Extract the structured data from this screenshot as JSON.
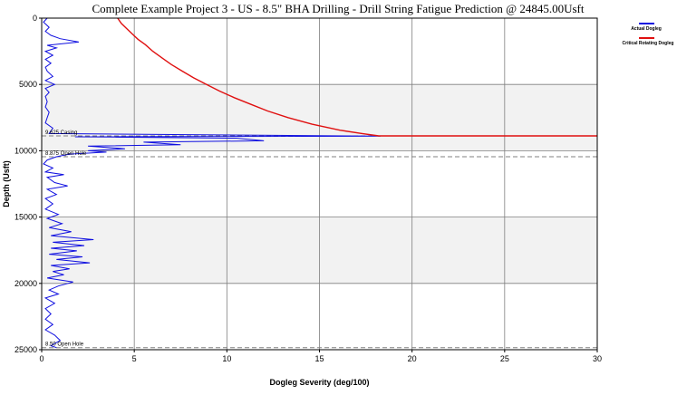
{
  "chart_data": {
    "type": "line",
    "title": "Complete Example Project 3 - US - 8.5\" BHA Drilling - Drill String Fatigue Prediction @ 24845.00Usft",
    "xlabel": "Dogleg Severity (deg/100)",
    "ylabel": "Depth (Usft)",
    "xlim": [
      0,
      30
    ],
    "ylim": [
      0,
      25000
    ],
    "y_inverted": true,
    "x_ticks": [
      0,
      5,
      10,
      15,
      20,
      25,
      30
    ],
    "y_ticks": [
      0,
      5000,
      10000,
      15000,
      20000,
      25000
    ],
    "grid": true,
    "legend_position": "top-right",
    "series": [
      {
        "name": "Actual Dogleg",
        "color": "#1010e0",
        "points": [
          [
            0.3,
            0
          ],
          [
            0.1,
            300
          ],
          [
            0.4,
            700
          ],
          [
            0.2,
            1000
          ],
          [
            0.5,
            1300
          ],
          [
            1.0,
            1550
          ],
          [
            2.0,
            1800
          ],
          [
            1.0,
            1950
          ],
          [
            0.3,
            2050
          ],
          [
            0.8,
            2250
          ],
          [
            0.2,
            2500
          ],
          [
            0.6,
            2800
          ],
          [
            0.2,
            3100
          ],
          [
            0.5,
            3400
          ],
          [
            0.2,
            3700
          ],
          [
            0.3,
            4000
          ],
          [
            0.6,
            4400
          ],
          [
            0.2,
            4700
          ],
          [
            0.7,
            5000
          ],
          [
            0.2,
            5300
          ],
          [
            0.4,
            5600
          ],
          [
            0.2,
            5900
          ],
          [
            0.3,
            6300
          ],
          [
            0.2,
            6700
          ],
          [
            0.4,
            7100
          ],
          [
            0.3,
            7500
          ],
          [
            0.2,
            7900
          ],
          [
            0.6,
            8300
          ],
          [
            0.4,
            8700
          ],
          [
            18.3,
            8900
          ],
          [
            1.8,
            8950
          ],
          [
            10.5,
            9050
          ],
          [
            12.0,
            9250
          ],
          [
            5.5,
            9350
          ],
          [
            7.5,
            9550
          ],
          [
            2.5,
            9650
          ],
          [
            4.5,
            9850
          ],
          [
            2.5,
            10000
          ],
          [
            3.5,
            10100
          ],
          [
            1.5,
            10250
          ],
          [
            0.8,
            10450
          ],
          [
            0.3,
            10700
          ],
          [
            0.1,
            11000
          ],
          [
            0.6,
            11300
          ],
          [
            0.2,
            11600
          ],
          [
            1.2,
            11800
          ],
          [
            0.3,
            12000
          ],
          [
            0.7,
            12400
          ],
          [
            1.4,
            12650
          ],
          [
            0.3,
            12900
          ],
          [
            0.8,
            13300
          ],
          [
            0.2,
            13600
          ],
          [
            0.6,
            14000
          ],
          [
            0.2,
            14400
          ],
          [
            0.9,
            14800
          ],
          [
            0.3,
            15100
          ],
          [
            1.1,
            15500
          ],
          [
            0.4,
            15800
          ],
          [
            1.6,
            16100
          ],
          [
            0.5,
            16400
          ],
          [
            2.8,
            16700
          ],
          [
            0.6,
            16900
          ],
          [
            2.3,
            17150
          ],
          [
            0.5,
            17350
          ],
          [
            1.9,
            17550
          ],
          [
            0.4,
            17800
          ],
          [
            2.2,
            18000
          ],
          [
            0.8,
            18200
          ],
          [
            2.6,
            18450
          ],
          [
            0.5,
            18650
          ],
          [
            1.5,
            18900
          ],
          [
            0.6,
            19100
          ],
          [
            1.2,
            19350
          ],
          [
            0.3,
            19600
          ],
          [
            1.7,
            19900
          ],
          [
            0.9,
            20200
          ],
          [
            0.4,
            20500
          ],
          [
            0.9,
            20800
          ],
          [
            0.2,
            21100
          ],
          [
            0.7,
            21500
          ],
          [
            0.2,
            21900
          ],
          [
            0.5,
            22300
          ],
          [
            0.2,
            22700
          ],
          [
            0.6,
            23100
          ],
          [
            0.2,
            23500
          ],
          [
            0.7,
            23900
          ],
          [
            1.0,
            24300
          ],
          [
            0.5,
            24700
          ],
          [
            0.8,
            24845
          ]
        ]
      },
      {
        "name": "Critical Rotating Dogleg",
        "color": "#e01010",
        "points": [
          [
            4.1,
            0
          ],
          [
            4.3,
            400
          ],
          [
            4.6,
            800
          ],
          [
            4.9,
            1200
          ],
          [
            5.2,
            1600
          ],
          [
            5.6,
            2000
          ],
          [
            6.0,
            2500
          ],
          [
            6.5,
            3000
          ],
          [
            7.0,
            3500
          ],
          [
            7.6,
            4000
          ],
          [
            8.2,
            4500
          ],
          [
            8.9,
            5000
          ],
          [
            9.6,
            5500
          ],
          [
            10.4,
            6000
          ],
          [
            11.3,
            6500
          ],
          [
            12.2,
            7000
          ],
          [
            13.3,
            7500
          ],
          [
            14.6,
            8000
          ],
          [
            16.1,
            8450
          ],
          [
            17.3,
            8700
          ],
          [
            18.2,
            8880
          ],
          [
            30,
            8880
          ]
        ]
      }
    ],
    "annotations": [
      {
        "label": "9.625 Casing",
        "depth": 8880
      },
      {
        "label": "8.875 Open Hole",
        "depth": 10450
      },
      {
        "label": "8.50 Open Hole",
        "depth": 24845
      }
    ]
  }
}
